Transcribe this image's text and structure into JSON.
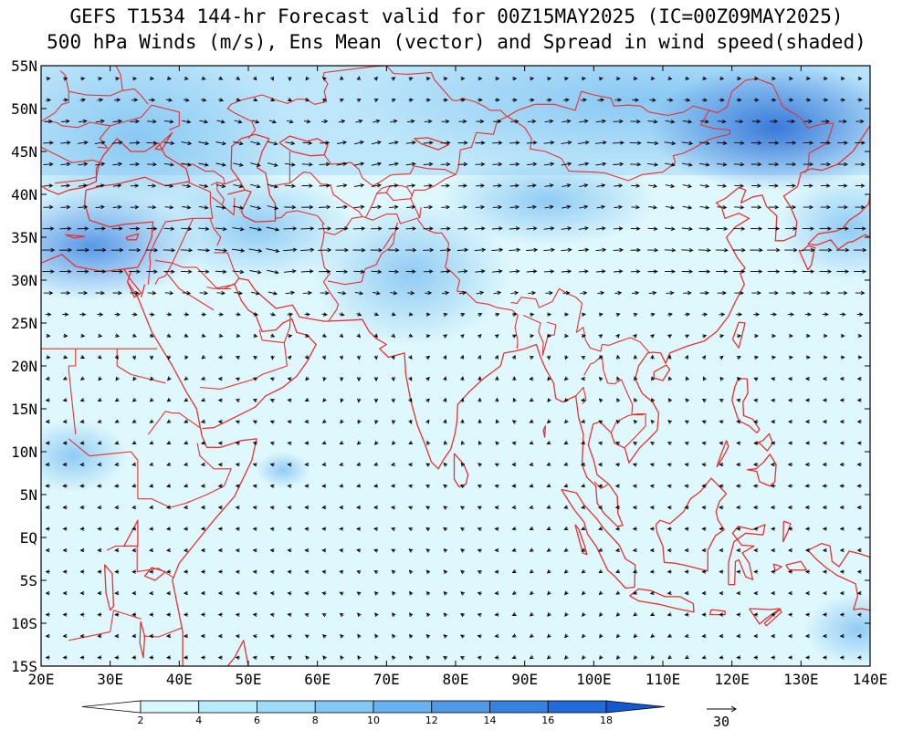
{
  "header": {
    "line1": "GEFS T1534 144-hr Forecast valid for 00Z15MAY2025 (IC=00Z09MAY2025)",
    "line2": "500 hPa Winds (m/s), Ens Mean (vector) and Spread in wind speed(shaded)"
  },
  "map": {
    "lon_range": [
      20,
      140
    ],
    "lat_range": [
      -15,
      55
    ],
    "lon_ticks": [
      "20E",
      "30E",
      "40E",
      "50E",
      "60E",
      "70E",
      "80E",
      "90E",
      "100E",
      "110E",
      "120E",
      "130E",
      "140E"
    ],
    "lat_ticks": [
      "55N",
      "50N",
      "45N",
      "40N",
      "35N",
      "30N",
      "25N",
      "20N",
      "15N",
      "10N",
      "5N",
      "EQ",
      "5S",
      "10S",
      "15S"
    ],
    "coastline_color": "#e83030",
    "vector_color": "#000000"
  },
  "colorbar": {
    "levels": [
      "2",
      "4",
      "6",
      "8",
      "10",
      "12",
      "14",
      "16",
      "18"
    ],
    "colors": [
      "#ffffff",
      "#d8f8ff",
      "#b8ecfc",
      "#9cdcfa",
      "#82c8f5",
      "#68b2f0",
      "#4e9ae8",
      "#3682e0",
      "#226ad8",
      "#1458d0"
    ]
  },
  "reference_vector": {
    "label": "30"
  }
}
